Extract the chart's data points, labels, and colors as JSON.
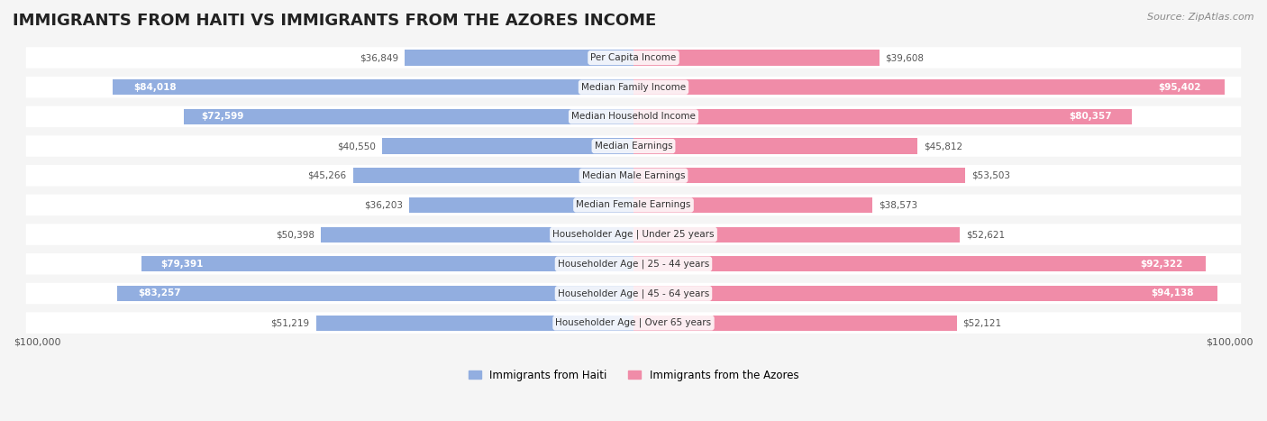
{
  "title": "IMMIGRANTS FROM HAITI VS IMMIGRANTS FROM THE AZORES INCOME",
  "source": "Source: ZipAtlas.com",
  "categories": [
    "Per Capita Income",
    "Median Family Income",
    "Median Household Income",
    "Median Earnings",
    "Median Male Earnings",
    "Median Female Earnings",
    "Householder Age | Under 25 years",
    "Householder Age | 25 - 44 years",
    "Householder Age | 45 - 64 years",
    "Householder Age | Over 65 years"
  ],
  "haiti_values": [
    36849,
    84018,
    72599,
    40550,
    45266,
    36203,
    50398,
    79391,
    83257,
    51219
  ],
  "azores_values": [
    39608,
    95402,
    80357,
    45812,
    53503,
    38573,
    52621,
    92322,
    94138,
    52121
  ],
  "haiti_labels": [
    "$36,849",
    "$84,018",
    "$72,599",
    "$40,550",
    "$45,266",
    "$36,203",
    "$50,398",
    "$79,391",
    "$83,257",
    "$51,219"
  ],
  "azores_labels": [
    "$39,608",
    "$95,402",
    "$80,357",
    "$45,812",
    "$53,503",
    "$38,573",
    "$52,621",
    "$92,322",
    "$94,138",
    "$52,121"
  ],
  "haiti_color": "#92aee0",
  "azores_color": "#f08ca8",
  "haiti_color_dark": "#6080c8",
  "azores_color_dark": "#e05878",
  "max_value": 100000,
  "background_color": "#f5f5f5",
  "row_bg_color": "#ffffff",
  "label_haiti_inside": [
    false,
    true,
    true,
    false,
    false,
    false,
    false,
    true,
    true,
    false
  ],
  "label_azores_inside": [
    false,
    true,
    true,
    false,
    false,
    false,
    false,
    true,
    true,
    false
  ]
}
